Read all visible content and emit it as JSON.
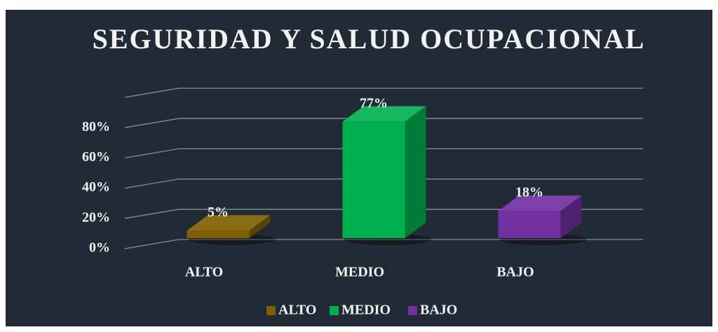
{
  "chart_data": {
    "type": "bar3d",
    "title": "SEGURIDAD Y SALUD OCUPACIONAL",
    "categories": [
      "ALTO",
      "MEDIO",
      "BAJO"
    ],
    "series": [
      {
        "name": "ALTO",
        "color": "#7f6000"
      },
      {
        "name": "MEDIO",
        "color": "#00b050"
      },
      {
        "name": "BAJO",
        "color": "#7030a0"
      }
    ],
    "values": [
      5,
      77,
      18
    ],
    "value_labels": [
      "5%",
      "77%",
      "18%"
    ],
    "ylim": [
      0,
      100
    ],
    "yticks": [
      {
        "value": 0,
        "label": "0%"
      },
      {
        "value": 20,
        "label": "20%"
      },
      {
        "value": 40,
        "label": "40%"
      },
      {
        "value": 60,
        "label": "60%"
      },
      {
        "value": 80,
        "label": "80%"
      }
    ],
    "grid": true,
    "legend": "bottom"
  }
}
